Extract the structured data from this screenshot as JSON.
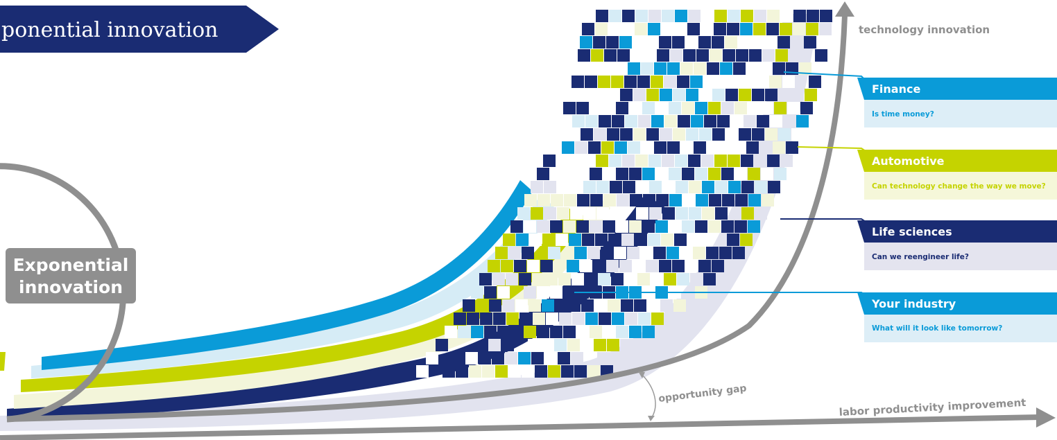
{
  "banner": {
    "title": "ponential innovation"
  },
  "hub": {
    "line1": "Exponential",
    "line2": "innovation"
  },
  "axes": {
    "y_label": "technology innovation",
    "x_label": "labor productivity improvement",
    "gap_label": "opportunity gap"
  },
  "colors": {
    "navy": "#1a2c73",
    "blue": "#0a9bd8",
    "lime": "#c5d300",
    "cream": "#f3f5da",
    "lavender": "#e2e3ef",
    "paleblue": "#d6ecf6",
    "gray": "#8f8f8f"
  },
  "industries": [
    {
      "name": "Finance",
      "question": "Is time money?",
      "color": "#0a9bd8",
      "tint": "#ddeef7",
      "text": "#0a9bd8"
    },
    {
      "name": "Automotive",
      "question": "Can technology change the way we move?",
      "color": "#c5d300",
      "tint": "#f5f7d9",
      "text": "#c5d300"
    },
    {
      "name": "Life sciences",
      "question": "Can we reengineer life?",
      "color": "#1a2c73",
      "tint": "#e4e4ef",
      "text": "#1a2c73"
    },
    {
      "name": "Your industry",
      "question": "What will it look like tomorrow?",
      "color": "#0a9bd8",
      "tint": "#ddeef7",
      "text": "#0a9bd8"
    }
  ]
}
